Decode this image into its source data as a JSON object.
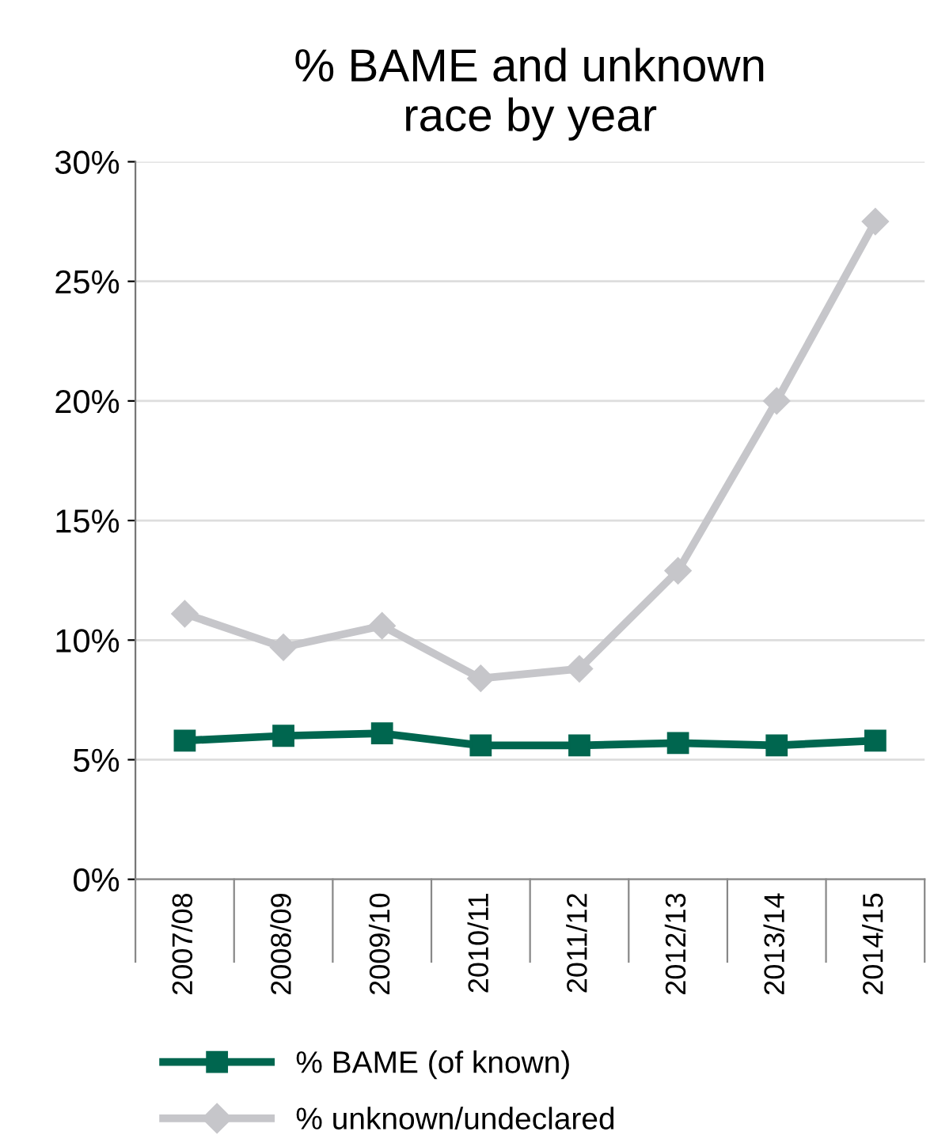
{
  "chart_data": {
    "type": "line",
    "title": "% BAME and unknown\nrace by year",
    "categories": [
      "2007/08",
      "2008/09",
      "2009/10",
      "2010/11",
      "2011/12",
      "2012/13",
      "2013/14",
      "2014/15"
    ],
    "series": [
      {
        "name": "% BAME (of known)",
        "color": "#00664f",
        "marker": "square",
        "values": [
          5.8,
          6.0,
          6.1,
          5.6,
          5.6,
          5.7,
          5.6,
          5.8
        ]
      },
      {
        "name": "% unknown/undeclared",
        "color": "#c6c6ca",
        "marker": "diamond",
        "values": [
          11.1,
          9.7,
          10.6,
          8.4,
          8.8,
          12.9,
          20.0,
          27.5
        ]
      }
    ],
    "ylim": [
      0,
      30
    ],
    "yticks": [
      {
        "value": 0,
        "label": "0%"
      },
      {
        "value": 5,
        "label": "5%"
      },
      {
        "value": 10,
        "label": "10%"
      },
      {
        "value": 15,
        "label": "15%"
      },
      {
        "value": 20,
        "label": "20%"
      },
      {
        "value": 25,
        "label": "25%"
      },
      {
        "value": 30,
        "label": "30%"
      }
    ],
    "grid": "y",
    "legend": "bottom",
    "line_style": "solid"
  }
}
